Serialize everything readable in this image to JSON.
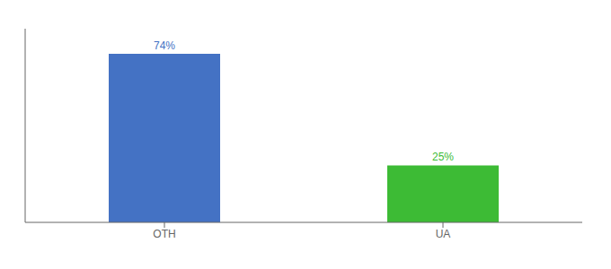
{
  "chart_data": {
    "type": "bar",
    "categories": [
      "OTH",
      "UA"
    ],
    "values": [
      74,
      25
    ],
    "value_labels": [
      "74%",
      "25%"
    ],
    "colors": [
      "#4472c4",
      "#3dbb35"
    ],
    "ylim": [
      0,
      85
    ],
    "data_labels": true,
    "tick_labels": "x"
  }
}
